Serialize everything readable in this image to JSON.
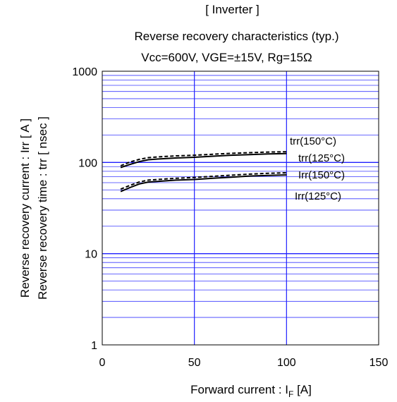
{
  "header": {
    "category": "[ Inverter ]",
    "title": "Reverse recovery characteristics  (typ.)",
    "conditions": "Vcc=600V,  VGE=±15V,  Rg=15Ω"
  },
  "chart_data": {
    "type": "line",
    "title": "Reverse recovery characteristics  (typ.)",
    "xlabel": "Forward current : IF [A]",
    "xlabel_main": "Forward current : I",
    "xlabel_sub": "F",
    "xlabel_unit": " [A]",
    "ylabel": [
      "Reverse recovery current : Irr [ A ]",
      "Reverse recovery time : trr [ nsec ]"
    ],
    "xlim": [
      0,
      150
    ],
    "ylim": [
      1,
      1000
    ],
    "yscale": "log",
    "xticks": [
      "0",
      "50",
      "100",
      "150"
    ],
    "yticks": [
      "1",
      "10",
      "100",
      "1000"
    ],
    "grid": true,
    "series": [
      {
        "name": "trr(150°C)",
        "style": "solid",
        "x": [
          10,
          15,
          20,
          25,
          30,
          40,
          50,
          60,
          70,
          80,
          90,
          100
        ],
        "y": [
          88,
          95,
          102,
          107,
          109,
          112,
          114,
          117,
          120,
          122,
          124,
          125
        ]
      },
      {
        "name": "trr(125°C)",
        "style": "dashed",
        "x": [
          10,
          15,
          20,
          25,
          30,
          40,
          50,
          60,
          70,
          80,
          90,
          100
        ],
        "y": [
          92,
          101,
          108,
          113,
          115,
          118,
          120,
          123,
          126,
          128,
          130,
          131
        ]
      },
      {
        "name": "Irr(150°C)",
        "style": "dashed",
        "x": [
          10,
          15,
          20,
          25,
          30,
          40,
          50,
          60,
          70,
          80,
          90,
          100
        ],
        "y": [
          51,
          56,
          61,
          64,
          65,
          67,
          68.5,
          70.5,
          72.5,
          74.5,
          76,
          77
        ]
      },
      {
        "name": "Irr(125°C)",
        "style": "solid",
        "x": [
          10,
          15,
          20,
          25,
          30,
          40,
          50,
          60,
          70,
          80,
          90,
          100
        ],
        "y": [
          48,
          53,
          58,
          61,
          62,
          64,
          65,
          67,
          69,
          71,
          72,
          73
        ]
      }
    ]
  }
}
